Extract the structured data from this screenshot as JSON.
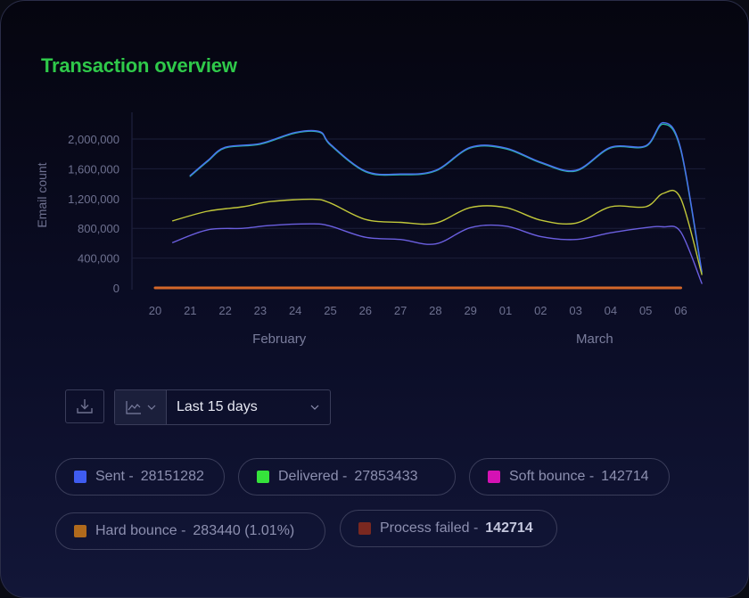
{
  "title": "Transaction overview",
  "chart_data": {
    "type": "line",
    "ylabel": "Email count",
    "yticks": [
      0,
      400000,
      800000,
      1200000,
      1600000,
      2000000
    ],
    "ytick_labels": [
      "0",
      "400,000",
      "800,000",
      "1,200,000",
      "1,600,000",
      "2,000,000"
    ],
    "ylim": [
      0,
      2000000
    ],
    "x_labels": [
      "20",
      "21",
      "22",
      "23",
      "24",
      "25",
      "26",
      "27",
      "28",
      "29",
      "01",
      "02",
      "03",
      "04",
      "05",
      "06"
    ],
    "month_labels": [
      {
        "label": "February",
        "at": "24"
      },
      {
        "label": "March",
        "at": "04"
      }
    ],
    "grid": true,
    "series": [
      {
        "name": "Delivered",
        "color": "#2bb7a6",
        "points": [
          [
            "21",
            1500000
          ],
          [
            "21.5",
            1700000
          ],
          [
            "22",
            1880000
          ],
          [
            "23",
            1930000
          ],
          [
            "24",
            2080000
          ],
          [
            "24.7",
            2090000
          ],
          [
            "25",
            1920000
          ],
          [
            "26",
            1560000
          ],
          [
            "27",
            1520000
          ],
          [
            "28",
            1570000
          ],
          [
            "29",
            1880000
          ],
          [
            "01",
            1870000
          ],
          [
            "02",
            1680000
          ],
          [
            "03",
            1570000
          ],
          [
            "04",
            1880000
          ],
          [
            "05",
            1900000
          ],
          [
            "05.5",
            2200000
          ],
          [
            "06",
            1850000
          ],
          [
            "06.6",
            200000
          ]
        ]
      },
      {
        "name": "Sent",
        "color": "#4a6ff0",
        "points": [
          [
            "21",
            1510000
          ],
          [
            "21.5",
            1710000
          ],
          [
            "22",
            1890000
          ],
          [
            "23",
            1940000
          ],
          [
            "24",
            2090000
          ],
          [
            "24.7",
            2100000
          ],
          [
            "25",
            1930000
          ],
          [
            "26",
            1570000
          ],
          [
            "27",
            1530000
          ],
          [
            "28",
            1580000
          ],
          [
            "29",
            1890000
          ],
          [
            "01",
            1880000
          ],
          [
            "02",
            1690000
          ],
          [
            "03",
            1580000
          ],
          [
            "04",
            1890000
          ],
          [
            "05",
            1910000
          ],
          [
            "05.5",
            2220000
          ],
          [
            "06",
            1870000
          ],
          [
            "06.6",
            220000
          ]
        ]
      },
      {
        "name": "",
        "color": "#c2c83a",
        "points": [
          [
            "20.5",
            900000
          ],
          [
            "21.5",
            1030000
          ],
          [
            "22.5",
            1090000
          ],
          [
            "23.3",
            1160000
          ],
          [
            "24.5",
            1190000
          ],
          [
            "25",
            1140000
          ],
          [
            "26",
            920000
          ],
          [
            "27",
            880000
          ],
          [
            "28",
            870000
          ],
          [
            "29",
            1080000
          ],
          [
            "01",
            1080000
          ],
          [
            "02",
            910000
          ],
          [
            "03",
            870000
          ],
          [
            "04",
            1090000
          ],
          [
            "05",
            1090000
          ],
          [
            "05.5",
            1270000
          ],
          [
            "06",
            1200000
          ],
          [
            "06.6",
            180000
          ]
        ]
      },
      {
        "name": "",
        "color": "#6b5fe0",
        "points": [
          [
            "20.5",
            610000
          ],
          [
            "21.5",
            780000
          ],
          [
            "22.5",
            800000
          ],
          [
            "23.3",
            840000
          ],
          [
            "24.5",
            860000
          ],
          [
            "25",
            830000
          ],
          [
            "26",
            680000
          ],
          [
            "27",
            650000
          ],
          [
            "28",
            590000
          ],
          [
            "29",
            810000
          ],
          [
            "01",
            830000
          ],
          [
            "02",
            690000
          ],
          [
            "03",
            650000
          ],
          [
            "04",
            740000
          ],
          [
            "05",
            810000
          ],
          [
            "05.5",
            820000
          ],
          [
            "06",
            750000
          ],
          [
            "06.6",
            60000
          ]
        ]
      },
      {
        "name": "Hard bounce",
        "color": "#d4672a",
        "points": [
          [
            "20",
            0
          ],
          [
            "06",
            0
          ]
        ]
      }
    ]
  },
  "controls": {
    "range_label": "Last 15 days"
  },
  "legend": [
    {
      "label": "Sent -",
      "value": "28151282",
      "color": "#3f5cf0",
      "bold": false
    },
    {
      "label": "Delivered -",
      "value": "27853433",
      "color": "#35e33b",
      "bold": false
    },
    {
      "label": "Soft bounce -",
      "value": "142714",
      "color": "#d412b4",
      "bold": false
    },
    {
      "label": "Hard bounce -",
      "value": "283440 (1.01%)",
      "color": "#b06a1c",
      "bold": false
    },
    {
      "label": "Process failed -",
      "value": "142714",
      "color": "#7a2820",
      "bold": true
    }
  ]
}
